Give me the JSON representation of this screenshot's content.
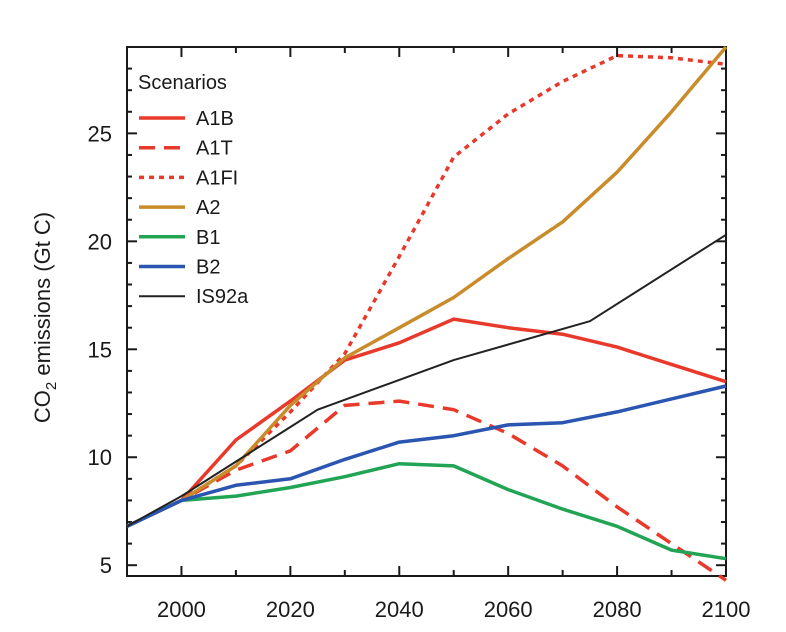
{
  "chart_data": {
    "type": "line",
    "title": "",
    "xlabel": "",
    "ylabel": "CO2 emissions (Gt C)",
    "ylabel_parts": {
      "pre": "CO",
      "sub": "2",
      "post": " emissions (Gt C)"
    },
    "xlim": [
      1990,
      2100
    ],
    "ylim": [
      4.5,
      29
    ],
    "xticks": [
      2000,
      2020,
      2040,
      2060,
      2080,
      2100
    ],
    "yticks": [
      5,
      10,
      15,
      20,
      25
    ],
    "grid": false,
    "legend": {
      "title": "Scenarios",
      "placement": "top-left"
    },
    "series": [
      {
        "name": "A1B",
        "color": "#e8392a",
        "dash": "solid",
        "x": [
          1990,
          2000,
          2010,
          2020,
          2030,
          2040,
          2050,
          2060,
          2070,
          2080,
          2090,
          2100
        ],
        "y": [
          6.8,
          8.0,
          10.8,
          12.6,
          14.5,
          15.3,
          16.4,
          16.0,
          15.7,
          15.1,
          14.3,
          13.5
        ]
      },
      {
        "name": "A1T",
        "color": "#e8392a",
        "dash": "dashed",
        "x": [
          1990,
          2000,
          2010,
          2020,
          2030,
          2040,
          2050,
          2060,
          2070,
          2080,
          2090,
          2100
        ],
        "y": [
          6.8,
          8.0,
          9.4,
          10.3,
          12.4,
          12.6,
          12.2,
          11.1,
          9.6,
          7.7,
          6.0,
          4.3
        ]
      },
      {
        "name": "A1FI",
        "color": "#e8392a",
        "dash": "dotted",
        "x": [
          1990,
          2000,
          2010,
          2020,
          2030,
          2040,
          2050,
          2060,
          2070,
          2080,
          2090,
          2100
        ],
        "y": [
          6.8,
          8.0,
          9.6,
          12.1,
          14.8,
          19.3,
          23.9,
          25.9,
          27.4,
          28.6,
          28.5,
          28.2
        ]
      },
      {
        "name": "A2",
        "color": "#c98c2a",
        "dash": "solid",
        "x": [
          1990,
          2000,
          2010,
          2020,
          2030,
          2040,
          2050,
          2060,
          2070,
          2080,
          2090,
          2100
        ],
        "y": [
          6.8,
          8.0,
          9.6,
          12.4,
          14.6,
          16.0,
          17.4,
          19.2,
          20.9,
          23.2,
          26.0,
          29.0
        ]
      },
      {
        "name": "B1",
        "color": "#22a455",
        "dash": "solid",
        "x": [
          1990,
          2000,
          2010,
          2020,
          2030,
          2040,
          2050,
          2060,
          2070,
          2080,
          2090,
          2100
        ],
        "y": [
          6.8,
          8.0,
          8.2,
          8.6,
          9.1,
          9.7,
          9.6,
          8.5,
          7.6,
          6.8,
          5.7,
          5.3
        ]
      },
      {
        "name": "B2",
        "color": "#2a55b0",
        "dash": "solid",
        "x": [
          1990,
          2000,
          2010,
          2020,
          2030,
          2040,
          2050,
          2060,
          2070,
          2080,
          2090,
          2100
        ],
        "y": [
          6.8,
          8.0,
          8.7,
          9.0,
          9.9,
          10.7,
          11.0,
          11.5,
          11.6,
          12.1,
          12.7,
          13.3
        ]
      },
      {
        "name": "IS92a",
        "color": "#222222",
        "dash": "solid",
        "thin": true,
        "x": [
          1990,
          2000,
          2010,
          2020,
          2025,
          2050,
          2075,
          2100
        ],
        "y": [
          6.8,
          8.2,
          9.8,
          11.4,
          12.2,
          14.5,
          16.3,
          20.3
        ]
      }
    ]
  }
}
